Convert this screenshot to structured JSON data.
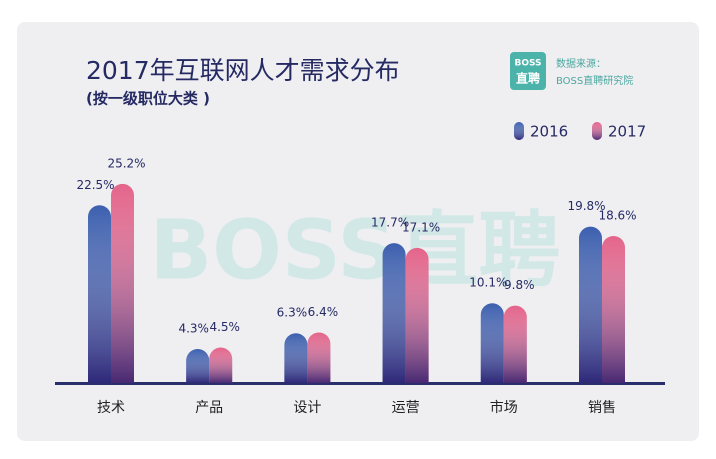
{
  "chart_data": {
    "type": "bar",
    "title": "2017年互联网人才需求分布",
    "subtitle": "(按一级职位大类 )",
    "source_label": "数据来源：",
    "source": "BOSS直聘研究院",
    "logo": [
      "BOSS",
      "直聘"
    ],
    "watermark": "BOSS直聘",
    "categories": [
      "技术",
      "产品",
      "设计",
      "运营",
      "市场",
      "销售"
    ],
    "series": [
      {
        "name": "2016",
        "color": "#3c5fae",
        "values": [
          22.5,
          4.3,
          6.3,
          17.7,
          10.1,
          19.8
        ],
        "value_labels": [
          "22.5%",
          "4.3%",
          "6.3%",
          "17.7%",
          "10.1%",
          "19.8%"
        ]
      },
      {
        "name": "2017",
        "color": "#e3648a",
        "values": [
          25.2,
          4.5,
          6.4,
          17.1,
          9.8,
          18.6
        ],
        "value_labels": [
          "25.2%",
          "4.5%",
          "6.4%",
          "17.1%",
          "9.8%",
          "18.6%"
        ]
      }
    ]
  }
}
